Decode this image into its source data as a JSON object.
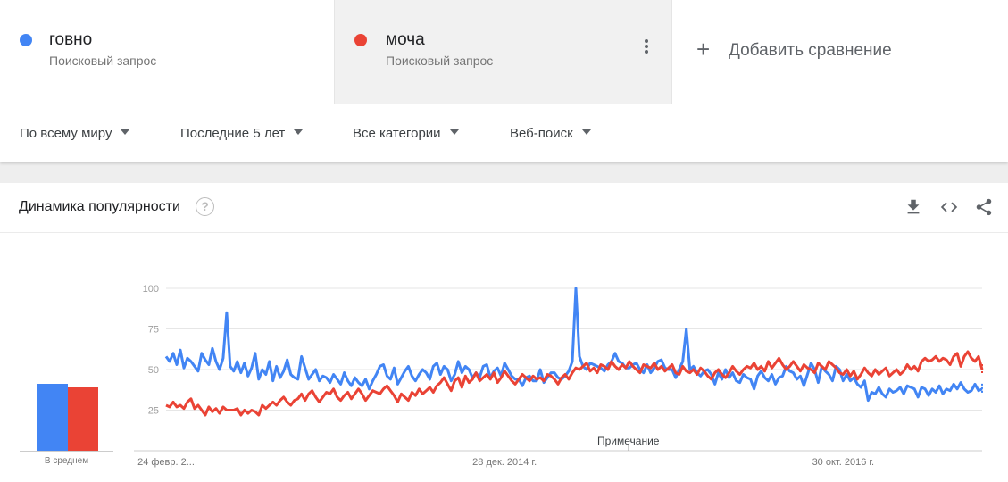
{
  "terms": [
    {
      "name": "говно",
      "subtitle": "Поисковый запрос",
      "color": "#4285f4"
    },
    {
      "name": "моча",
      "subtitle": "Поисковый запрос",
      "color": "#ea4335"
    }
  ],
  "add_comparison": {
    "label": "Добавить сравнение",
    "icon": "plus-icon"
  },
  "filters": [
    {
      "label": "По всему миру"
    },
    {
      "label": "Последние 5 лет"
    },
    {
      "label": "Все категории"
    },
    {
      "label": "Веб-поиск"
    }
  ],
  "card": {
    "title": "Динамика популярности",
    "help_glyph": "?",
    "icons": [
      "download-icon",
      "embed-icon",
      "share-icon"
    ]
  },
  "average": {
    "label": "В среднем",
    "values": [
      44,
      42
    ]
  },
  "annotation": {
    "label": "Примечание"
  },
  "chart_data": {
    "type": "line",
    "yticks": [
      25,
      50,
      75,
      100
    ],
    "ylim": [
      0,
      100
    ],
    "xtick_labels": [
      "24 февр. 2...",
      "28 дек. 2014 г.",
      "30 окт. 2016 г."
    ],
    "xtick_index": [
      0,
      95,
      190
    ],
    "grid": true,
    "series": [
      {
        "name": "говно",
        "color": "#4285f4",
        "values": [
          58,
          55,
          60,
          53,
          62,
          51,
          57,
          55,
          52,
          49,
          60,
          56,
          53,
          63,
          55,
          50,
          57,
          85,
          52,
          49,
          55,
          48,
          54,
          46,
          51,
          60,
          44,
          50,
          47,
          55,
          43,
          52,
          45,
          49,
          56,
          47,
          45,
          44,
          58,
          51,
          44,
          47,
          50,
          43,
          46,
          45,
          42,
          47,
          44,
          41,
          48,
          43,
          40,
          45,
          42,
          40,
          44,
          38,
          43,
          47,
          52,
          53,
          46,
          44,
          51,
          41,
          45,
          49,
          52,
          46,
          43,
          47,
          50,
          48,
          44,
          52,
          54,
          47,
          52,
          50,
          43,
          47,
          55,
          48,
          52,
          50,
          45,
          48,
          45,
          52,
          53,
          45,
          49,
          51,
          46,
          54,
          50,
          46,
          44,
          44,
          40,
          45,
          46,
          43,
          43,
          50,
          42,
          45,
          48,
          48,
          45,
          44,
          46,
          49,
          55,
          100,
          58,
          52,
          50,
          54,
          53,
          52,
          51,
          49,
          53,
          55,
          60,
          55,
          54,
          51,
          51,
          53,
          54,
          50,
          48,
          53,
          48,
          51,
          55,
          56,
          51,
          50,
          50,
          45,
          50,
          55,
          75,
          50,
          52,
          48,
          46,
          49,
          50,
          47,
          41,
          48,
          44,
          50,
          45,
          48,
          43,
          42,
          47,
          45,
          44,
          38,
          46,
          49,
          45,
          43,
          47,
          41,
          45,
          46,
          52,
          49,
          48,
          44,
          46,
          40,
          47,
          54,
          50,
          42,
          52,
          49,
          47,
          43,
          52,
          50,
          43,
          47,
          43,
          45,
          41,
          39,
          43,
          31,
          36,
          35,
          39,
          35,
          33,
          38,
          36,
          37,
          39,
          35,
          40,
          39,
          38,
          33,
          39,
          38,
          34,
          38,
          36,
          40,
          35,
          38,
          37,
          41,
          38,
          42,
          38,
          36,
          37,
          41,
          37,
          38
        ]
      },
      {
        "name": "моча",
        "color": "#ea4335",
        "values": [
          28,
          27,
          30,
          27,
          28,
          26,
          30,
          32,
          26,
          28,
          25,
          22,
          27,
          24,
          26,
          23,
          27,
          25,
          25,
          25,
          26,
          22,
          25,
          23,
          25,
          24,
          22,
          28,
          26,
          28,
          30,
          28,
          31,
          33,
          30,
          28,
          31,
          32,
          35,
          31,
          35,
          37,
          33,
          30,
          33,
          36,
          35,
          38,
          33,
          31,
          34,
          36,
          32,
          35,
          38,
          35,
          31,
          34,
          37,
          36,
          35,
          38,
          40,
          37,
          34,
          30,
          35,
          33,
          31,
          36,
          34,
          38,
          35,
          37,
          39,
          36,
          40,
          42,
          45,
          41,
          37,
          43,
          45,
          39,
          46,
          42,
          44,
          48,
          43,
          45,
          47,
          44,
          48,
          42,
          45,
          49,
          46,
          43,
          41,
          44,
          47,
          45,
          43,
          46,
          44,
          45,
          43,
          47,
          46,
          44,
          41,
          45,
          47,
          44,
          48,
          51,
          50,
          52,
          54,
          49,
          51,
          48,
          53,
          52,
          50,
          55,
          52,
          50,
          53,
          51,
          55,
          52,
          50,
          48,
          53,
          52,
          51,
          54,
          50,
          52,
          49,
          51,
          53,
          48,
          47,
          52,
          49,
          48,
          50,
          47,
          51,
          49,
          46,
          44,
          48,
          50,
          47,
          45,
          48,
          52,
          49,
          47,
          50,
          52,
          51,
          54,
          50,
          52,
          49,
          55,
          51,
          54,
          57,
          53,
          50,
          52,
          55,
          52,
          49,
          53,
          51,
          50,
          48,
          54,
          52,
          50,
          55,
          53,
          51,
          48,
          47,
          50,
          46,
          49,
          44,
          47,
          51,
          48,
          46,
          50,
          47,
          49,
          51,
          46,
          48,
          50,
          47,
          49,
          53,
          50,
          52,
          49,
          55,
          57,
          55,
          56,
          58,
          55,
          57,
          56,
          53,
          58,
          60,
          52,
          58,
          61,
          57,
          55,
          58,
          50
        ]
      }
    ]
  }
}
